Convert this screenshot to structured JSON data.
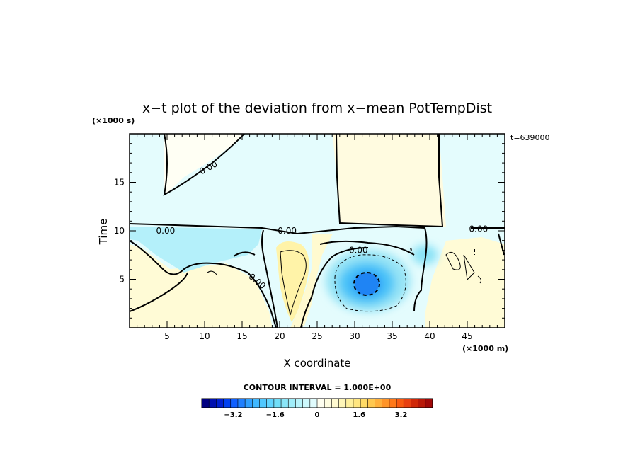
{
  "chart_data": {
    "type": "heatmap",
    "title": "x−t plot of the deviation from x−mean PotTempDist",
    "xlabel": "X coordinate",
    "ylabel": "Time",
    "x_unit": "(×1000 m)",
    "y_unit": "(×1000 s)",
    "time_label": "t=639000",
    "xlim": [
      0,
      50
    ],
    "ylim": [
      0,
      20
    ],
    "x_ticks": [
      5,
      10,
      15,
      20,
      25,
      30,
      35,
      40,
      45
    ],
    "y_ticks": [
      5,
      10,
      15
    ],
    "contour_labels": [
      {
        "text": "0.00",
        "x": 10.5,
        "y": 16.5
      },
      {
        "text": "0.00",
        "x": 4.8,
        "y": 10.0
      },
      {
        "text": "0.00",
        "x": 21.0,
        "y": 10.0
      },
      {
        "text": "0.00",
        "x": 30.5,
        "y": 8.0
      },
      {
        "text": "0.00",
        "x": 17.0,
        "y": 4.8
      },
      {
        "text": "0.00",
        "x": 46.5,
        "y": 10.2
      }
    ],
    "anomalies": [
      {
        "x": 31.5,
        "y": 4.5,
        "value": -2.0
      },
      {
        "x": 22.0,
        "y": 5.5,
        "value": 0.8
      },
      {
        "x": 28.5,
        "y": 15.0,
        "value": 0.5
      },
      {
        "x": 5.0,
        "y": 5.0,
        "value": 0.5
      },
      {
        "x": 12.0,
        "y": 5.0,
        "value": 0.5
      },
      {
        "x": 43.0,
        "y": 4.0,
        "value": 0.4
      },
      {
        "x": 5.0,
        "y": 8.5,
        "value": -0.5
      },
      {
        "x": 40.0,
        "y": 7.0,
        "value": -0.5
      },
      {
        "x": 24.0,
        "y": 13.0,
        "value": -0.2
      },
      {
        "x": 42.0,
        "y": 15.0,
        "value": -0.1
      }
    ],
    "colorbar": {
      "title": "CONTOUR INTERVAL = 1.000E+00",
      "tick_labels": [
        "−3.2",
        "−1.6",
        "0",
        "1.6",
        "3.2"
      ],
      "tick_values": [
        -3.2,
        -1.6,
        0,
        1.6,
        3.2
      ],
      "range": [
        -4.4,
        4.4
      ],
      "colors": [
        "#000080",
        "#0010b0",
        "#0020d0",
        "#0040f0",
        "#1060ff",
        "#2080ff",
        "#30a0ff",
        "#40b8ff",
        "#50c8ff",
        "#60d4ff",
        "#70def8",
        "#8ae6f8",
        "#a0eefa",
        "#b8f4fb",
        "#ccf8fc",
        "#e0fcfd",
        "#fffff0",
        "#fffde0",
        "#fffad0",
        "#fff6b8",
        "#fff09c",
        "#ffe680",
        "#ffda66",
        "#ffc850",
        "#ffb03c",
        "#ff9428",
        "#ff7818",
        "#f85a10",
        "#e84010",
        "#d02808",
        "#b81808",
        "#a00808"
      ]
    }
  }
}
